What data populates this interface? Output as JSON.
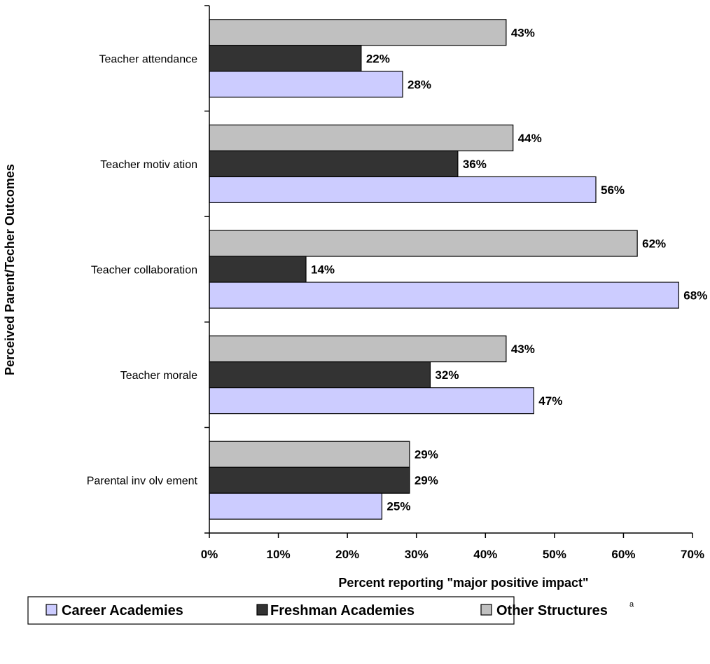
{
  "chart_data": {
    "type": "bar",
    "orientation": "horizontal",
    "xlabel": "Percent reporting \"major positive impact\"",
    "ylabel": "Perceived Parent/Techer Outcomes",
    "xlim": [
      0,
      70
    ],
    "x_ticks": [
      "0%",
      "10%",
      "20%",
      "30%",
      "40%",
      "50%",
      "60%",
      "70%"
    ],
    "categories": [
      "Teacher attendance",
      "Teacher motiv ation",
      "Teacher collaboration",
      "Teacher morale",
      "Parental inv olv ement"
    ],
    "series": [
      {
        "name": "Career Academies",
        "color": "#CCCCFF",
        "values": [
          28,
          56,
          68,
          47,
          25
        ]
      },
      {
        "name": "Freshman Academies",
        "color": "#333333",
        "values": [
          22,
          36,
          14,
          32,
          29
        ]
      },
      {
        "name": "Other Structures",
        "color": "#C0C0C0",
        "values": [
          43,
          44,
          62,
          43,
          29
        ]
      }
    ],
    "value_suffix": "%",
    "legend": {
      "position": "bottom",
      "superscript": "a"
    },
    "grid": false
  }
}
